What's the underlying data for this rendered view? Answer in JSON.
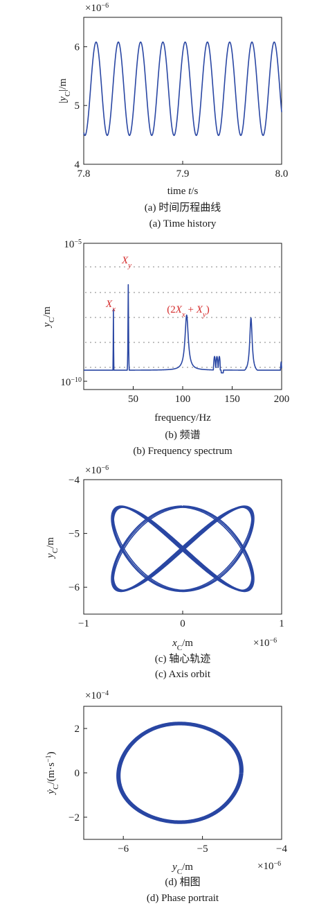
{
  "colors": {
    "series": "#2946a3",
    "annotation": "#d42a2a",
    "grid": "#b8b8b8",
    "axis": "#1a1a1a"
  },
  "chart_data": [
    {
      "type": "line",
      "id": "time-history",
      "title": "",
      "ylabel": "|y_C|/m",
      "xlabel": "time t/s",
      "y_multiplier": "×10⁻⁶",
      "xlim": [
        7.8,
        8.0
      ],
      "ylim": [
        4.0,
        6.5
      ],
      "xticks": [
        7.8,
        7.9,
        8.0
      ],
      "xtick_labels": [
        "7.8",
        "7.9",
        "8.0"
      ],
      "yticks": [
        4,
        5,
        6
      ],
      "ytick_labels": [
        "4",
        "5",
        "6"
      ],
      "series": [
        {
          "amplitude_range": [
            4.49,
            6.08
          ],
          "period_s": 0.0225,
          "first_peak_s": 7.8125
        }
      ],
      "caption_cn": "(a) 时间历程曲线",
      "caption_en": "(a) Time history"
    },
    {
      "type": "line",
      "id": "frequency-spectrum",
      "title": "",
      "ylabel": "y_C/m",
      "xlabel": "frequency/Hz",
      "yscale": "log",
      "xlim": [
        0,
        200
      ],
      "xticks": [
        50,
        100,
        150,
        200
      ],
      "xtick_labels": [
        "50",
        "100",
        "150",
        "200"
      ],
      "ytick_labels": [
        "10⁻⁵",
        "10⁻¹⁰"
      ],
      "peaks": [
        {
          "label": "X_x",
          "freq": 30,
          "log_amp": -7.4
        },
        {
          "label": "X_y",
          "freq": 45,
          "log_amp": -6.5
        },
        {
          "label": "(2X_x + X_y)",
          "freq": 104,
          "log_amp": -7.8
        }
      ],
      "caption_cn": "(b) 频谱",
      "caption_en": "(b) Frequency spectrum"
    },
    {
      "type": "line",
      "id": "axis-orbit",
      "title": "",
      "xlabel": "x_C/m",
      "ylabel": "y_C/m",
      "x_multiplier": "×10⁻⁶",
      "y_multiplier": "×10⁻⁶",
      "xlim": [
        -1,
        1
      ],
      "ylim": [
        -6.5,
        -4
      ],
      "xticks": [
        -1,
        0,
        1
      ],
      "xtick_labels": [
        "−1",
        "0",
        "1"
      ],
      "yticks": [
        -6,
        -5,
        -4
      ],
      "ytick_labels": [
        "−6",
        "−5",
        "−4"
      ],
      "series": [
        {
          "x_range": [
            -0.72,
            0.72
          ],
          "y_range": [
            -6.08,
            -4.49
          ]
        }
      ],
      "caption_cn": "(c) 轴心轨迹",
      "caption_en": "(c) Axis orbit"
    },
    {
      "type": "line",
      "id": "phase-portrait",
      "title": "",
      "xlabel": "y_C/m",
      "ylabel": "ẏ_C/(m·s⁻¹)",
      "x_multiplier": "×10⁻⁶",
      "y_multiplier": "×10⁻⁴",
      "xlim": [
        -6.5,
        -4
      ],
      "ylim": [
        -3,
        3
      ],
      "xticks": [
        -6,
        -5,
        -4
      ],
      "xtick_labels": [
        "−6",
        "−5",
        "−4"
      ],
      "yticks": [
        -2,
        0,
        2
      ],
      "ytick_labels": [
        "−2",
        "0",
        "2"
      ],
      "series": [
        {
          "x_range": [
            -6.08,
            -4.49
          ],
          "y_range": [
            -2.28,
            2.28
          ]
        }
      ],
      "caption_cn": "(d) 相图",
      "caption_en": "(d) Phase portrait"
    }
  ]
}
